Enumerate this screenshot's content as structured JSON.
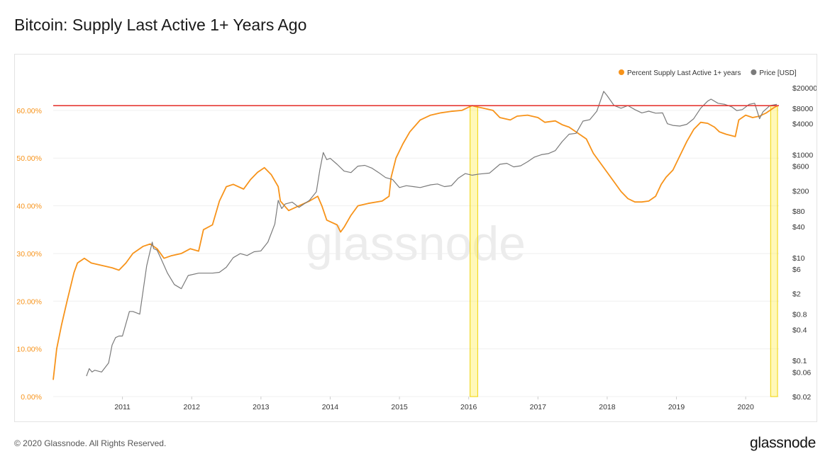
{
  "page": {
    "title": "Bitcoin: Supply Last Active 1+ Years Ago",
    "copyright": "© 2020 Glassnode. All Rights Reserved.",
    "logo": "glassnode",
    "watermark": "glassnode"
  },
  "chart_data": {
    "type": "line",
    "title": "Bitcoin: Supply Last Active 1+ Years Ago",
    "x_ticks": [
      "2011",
      "2012",
      "2013",
      "2014",
      "2015",
      "2016",
      "2017",
      "2018",
      "2019",
      "2020"
    ],
    "x_range": [
      2010.0,
      2020.48
    ],
    "y_left": {
      "ticks": [
        "0.00%",
        "10.00%",
        "20.00%",
        "30.00%",
        "40.00%",
        "50.00%",
        "60.00%"
      ],
      "range": [
        0,
        68
      ],
      "color": "#f7931a"
    },
    "y_right": {
      "ticks": [
        "$0.02",
        "$0.06",
        "$0.1",
        "$0.4",
        "$0.8",
        "$2",
        "$6",
        "$10",
        "$40",
        "$80",
        "$200",
        "$600",
        "$1000",
        "$4000",
        "$8000",
        "$20000"
      ],
      "scale": "log",
      "range": [
        0.02,
        40000
      ]
    },
    "legend": {
      "placement": "top-right",
      "items": [
        {
          "label": "Percent Supply Last Active 1+ years",
          "color": "#f7931a"
        },
        {
          "label": "Price [USD]",
          "color": "#7a7a7a"
        }
      ]
    },
    "reference_line": {
      "value": 61.0,
      "color": "#e53935"
    },
    "highlight_bands": [
      {
        "x0": 2016.02,
        "x1": 2016.13
      },
      {
        "x0": 2020.36,
        "x1": 2020.46
      }
    ],
    "series": [
      {
        "name": "Percent Supply Last Active 1+ years",
        "axis": "left",
        "color": "#f7931a",
        "points": [
          [
            2010.0,
            3.5
          ],
          [
            2010.05,
            10
          ],
          [
            2010.12,
            15
          ],
          [
            2010.2,
            20
          ],
          [
            2010.3,
            26
          ],
          [
            2010.35,
            28
          ],
          [
            2010.45,
            29
          ],
          [
            2010.55,
            28
          ],
          [
            2010.7,
            27.5
          ],
          [
            2010.85,
            27
          ],
          [
            2010.95,
            26.5
          ],
          [
            2011.05,
            28
          ],
          [
            2011.15,
            30
          ],
          [
            2011.3,
            31.5
          ],
          [
            2011.4,
            32
          ],
          [
            2011.5,
            31
          ],
          [
            2011.6,
            29
          ],
          [
            2011.7,
            29.5
          ],
          [
            2011.85,
            30
          ],
          [
            2011.98,
            31
          ],
          [
            2012.1,
            30.5
          ],
          [
            2012.17,
            35
          ],
          [
            2012.3,
            36
          ],
          [
            2012.4,
            41
          ],
          [
            2012.5,
            44
          ],
          [
            2012.6,
            44.5
          ],
          [
            2012.75,
            43.5
          ],
          [
            2012.85,
            45.5
          ],
          [
            2012.95,
            47
          ],
          [
            2013.05,
            48
          ],
          [
            2013.15,
            46.5
          ],
          [
            2013.25,
            44
          ],
          [
            2013.28,
            41
          ],
          [
            2013.4,
            39
          ],
          [
            2013.55,
            40
          ],
          [
            2013.7,
            41
          ],
          [
            2013.82,
            42
          ],
          [
            2013.88,
            40
          ],
          [
            2013.95,
            37
          ],
          [
            2014.1,
            36
          ],
          [
            2014.15,
            34.5
          ],
          [
            2014.2,
            35.5
          ],
          [
            2014.3,
            38
          ],
          [
            2014.4,
            40
          ],
          [
            2014.55,
            40.5
          ],
          [
            2014.75,
            41
          ],
          [
            2014.85,
            42
          ],
          [
            2014.88,
            46
          ],
          [
            2014.95,
            50
          ],
          [
            2015.05,
            53
          ],
          [
            2015.15,
            55.5
          ],
          [
            2015.3,
            58
          ],
          [
            2015.45,
            59
          ],
          [
            2015.6,
            59.5
          ],
          [
            2015.75,
            59.8
          ],
          [
            2015.9,
            60
          ],
          [
            2016.05,
            61
          ],
          [
            2016.1,
            60.8
          ],
          [
            2016.2,
            60.5
          ],
          [
            2016.35,
            60
          ],
          [
            2016.45,
            58.5
          ],
          [
            2016.6,
            58
          ],
          [
            2016.7,
            58.8
          ],
          [
            2016.85,
            59
          ],
          [
            2017.0,
            58.5
          ],
          [
            2017.1,
            57.5
          ],
          [
            2017.25,
            57.8
          ],
          [
            2017.35,
            57
          ],
          [
            2017.45,
            56.5
          ],
          [
            2017.55,
            55.5
          ],
          [
            2017.7,
            54
          ],
          [
            2017.8,
            51
          ],
          [
            2017.9,
            49
          ],
          [
            2018.0,
            47
          ],
          [
            2018.1,
            45
          ],
          [
            2018.2,
            43
          ],
          [
            2018.3,
            41.5
          ],
          [
            2018.4,
            40.8
          ],
          [
            2018.5,
            40.8
          ],
          [
            2018.6,
            41
          ],
          [
            2018.7,
            42
          ],
          [
            2018.78,
            44.5
          ],
          [
            2018.85,
            46
          ],
          [
            2018.95,
            47.5
          ],
          [
            2019.0,
            49
          ],
          [
            2019.05,
            50.5
          ],
          [
            2019.15,
            53.5
          ],
          [
            2019.25,
            56
          ],
          [
            2019.35,
            57.5
          ],
          [
            2019.45,
            57.3
          ],
          [
            2019.55,
            56.5
          ],
          [
            2019.62,
            55.5
          ],
          [
            2019.72,
            55
          ],
          [
            2019.85,
            54.5
          ],
          [
            2019.9,
            58
          ],
          [
            2020.0,
            59
          ],
          [
            2020.1,
            58.5
          ],
          [
            2020.2,
            58.8
          ],
          [
            2020.3,
            59.5
          ],
          [
            2020.4,
            60.5
          ],
          [
            2020.46,
            61
          ]
        ]
      },
      {
        "name": "Price [USD]",
        "axis": "right",
        "color": "#7a7a7a",
        "points": [
          [
            2010.48,
            0.05
          ],
          [
            2010.52,
            0.07
          ],
          [
            2010.56,
            0.06
          ],
          [
            2010.6,
            0.065
          ],
          [
            2010.7,
            0.06
          ],
          [
            2010.8,
            0.09
          ],
          [
            2010.85,
            0.2
          ],
          [
            2010.9,
            0.28
          ],
          [
            2010.95,
            0.3
          ],
          [
            2011.0,
            0.3
          ],
          [
            2011.1,
            0.9
          ],
          [
            2011.15,
            0.9
          ],
          [
            2011.25,
            0.8
          ],
          [
            2011.35,
            7
          ],
          [
            2011.43,
            20
          ],
          [
            2011.45,
            15
          ],
          [
            2011.5,
            14
          ],
          [
            2011.55,
            10
          ],
          [
            2011.65,
            5
          ],
          [
            2011.75,
            3
          ],
          [
            2011.85,
            2.5
          ],
          [
            2011.95,
            4.5
          ],
          [
            2012.1,
            5
          ],
          [
            2012.3,
            5
          ],
          [
            2012.4,
            5.2
          ],
          [
            2012.5,
            6.5
          ],
          [
            2012.6,
            10
          ],
          [
            2012.7,
            12
          ],
          [
            2012.8,
            11
          ],
          [
            2012.9,
            13
          ],
          [
            2013.0,
            13.5
          ],
          [
            2013.1,
            20
          ],
          [
            2013.2,
            45
          ],
          [
            2013.25,
            130
          ],
          [
            2013.3,
            90
          ],
          [
            2013.35,
            110
          ],
          [
            2013.45,
            120
          ],
          [
            2013.55,
            95
          ],
          [
            2013.7,
            130
          ],
          [
            2013.8,
            190
          ],
          [
            2013.85,
            500
          ],
          [
            2013.9,
            1100
          ],
          [
            2013.95,
            800
          ],
          [
            2014.0,
            850
          ],
          [
            2014.1,
            650
          ],
          [
            2014.2,
            480
          ],
          [
            2014.3,
            450
          ],
          [
            2014.4,
            600
          ],
          [
            2014.5,
            620
          ],
          [
            2014.6,
            550
          ],
          [
            2014.7,
            450
          ],
          [
            2014.8,
            360
          ],
          [
            2014.9,
            330
          ],
          [
            2015.0,
            230
          ],
          [
            2015.1,
            250
          ],
          [
            2015.2,
            240
          ],
          [
            2015.3,
            230
          ],
          [
            2015.45,
            260
          ],
          [
            2015.55,
            270
          ],
          [
            2015.65,
            240
          ],
          [
            2015.75,
            250
          ],
          [
            2015.85,
            350
          ],
          [
            2015.95,
            430
          ],
          [
            2016.05,
            400
          ],
          [
            2016.15,
            420
          ],
          [
            2016.3,
            440
          ],
          [
            2016.45,
            650
          ],
          [
            2016.55,
            680
          ],
          [
            2016.65,
            580
          ],
          [
            2016.75,
            610
          ],
          [
            2016.85,
            730
          ],
          [
            2016.95,
            900
          ],
          [
            2017.05,
            1000
          ],
          [
            2017.15,
            1050
          ],
          [
            2017.25,
            1200
          ],
          [
            2017.35,
            1800
          ],
          [
            2017.45,
            2500
          ],
          [
            2017.55,
            2600
          ],
          [
            2017.65,
            4500
          ],
          [
            2017.75,
            4800
          ],
          [
            2017.85,
            7000
          ],
          [
            2017.95,
            17000
          ],
          [
            2018.0,
            14000
          ],
          [
            2018.1,
            9000
          ],
          [
            2018.2,
            8000
          ],
          [
            2018.3,
            9000
          ],
          [
            2018.4,
            7500
          ],
          [
            2018.5,
            6500
          ],
          [
            2018.6,
            7000
          ],
          [
            2018.7,
            6400
          ],
          [
            2018.8,
            6500
          ],
          [
            2018.87,
            4000
          ],
          [
            2018.95,
            3700
          ],
          [
            2019.05,
            3600
          ],
          [
            2019.15,
            3900
          ],
          [
            2019.25,
            5000
          ],
          [
            2019.35,
            8000
          ],
          [
            2019.45,
            11000
          ],
          [
            2019.5,
            12000
          ],
          [
            2019.6,
            10000
          ],
          [
            2019.7,
            9500
          ],
          [
            2019.8,
            8500
          ],
          [
            2019.87,
            7200
          ],
          [
            2019.95,
            7500
          ],
          [
            2020.05,
            9500
          ],
          [
            2020.13,
            10000
          ],
          [
            2020.2,
            5000
          ],
          [
            2020.25,
            6800
          ],
          [
            2020.35,
            9000
          ],
          [
            2020.45,
            9500
          ]
        ]
      }
    ]
  }
}
